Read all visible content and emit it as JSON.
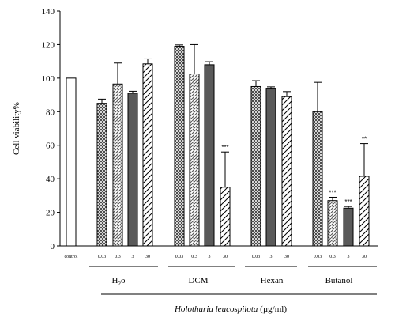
{
  "chart_data": {
    "type": "bar",
    "ylabel": "Cell viability%",
    "xlabel_italic": "Holothuria leucospilota",
    "xlabel_unit": "(µg/ml)",
    "ylim": [
      0,
      140
    ],
    "yticks": [
      0,
      20,
      40,
      60,
      80,
      100,
      120,
      140
    ],
    "grid": false,
    "bars": [
      {
        "label": "control",
        "value": 100,
        "error": 0,
        "pattern": "white",
        "sig": ""
      },
      {
        "label": "0.03",
        "value": 85,
        "error": 2.5,
        "pattern": "crosshatch",
        "sig": ""
      },
      {
        "label": "0.3",
        "value": 96.5,
        "error": 12.5,
        "pattern": "dots",
        "sig": ""
      },
      {
        "label": "3",
        "value": 91,
        "error": 1.2,
        "pattern": "solid",
        "sig": ""
      },
      {
        "label": "30",
        "value": 108.5,
        "error": 3,
        "pattern": "diagonal",
        "sig": ""
      },
      {
        "label": "0.03",
        "value": 119,
        "error": 0.8,
        "pattern": "crosshatch",
        "sig": ""
      },
      {
        "label": "0.3",
        "value": 102.5,
        "error": 17.5,
        "pattern": "dots",
        "sig": ""
      },
      {
        "label": "3",
        "value": 108,
        "error": 1.8,
        "pattern": "solid",
        "sig": ""
      },
      {
        "label": "30",
        "value": 35,
        "error": 21,
        "pattern": "diagonal",
        "sig": "***"
      },
      {
        "label": "0.03",
        "value": 95,
        "error": 3.5,
        "pattern": "crosshatch",
        "sig": ""
      },
      {
        "label": "3",
        "value": 94,
        "error": 0.8,
        "pattern": "solid",
        "sig": ""
      },
      {
        "label": "30",
        "value": 89,
        "error": 3,
        "pattern": "diagonal",
        "sig": ""
      },
      {
        "label": "0.03",
        "value": 80,
        "error": 17.5,
        "pattern": "crosshatch",
        "sig": ""
      },
      {
        "label": "0.3",
        "value": 27,
        "error": 2,
        "pattern": "dots",
        "sig": "***"
      },
      {
        "label": "3",
        "value": 22.5,
        "error": 1,
        "pattern": "solid",
        "sig": "***"
      },
      {
        "label": "30",
        "value": 41.5,
        "error": 19.5,
        "pattern": "diagonal",
        "sig": "**"
      }
    ],
    "groups": [
      {
        "name": "H",
        "subscript": "2",
        "suffix": "o"
      },
      {
        "name": "DCM",
        "subscript": "",
        "suffix": ""
      },
      {
        "name": "Hexan",
        "subscript": "",
        "suffix": ""
      },
      {
        "name": "Butanol",
        "subscript": "",
        "suffix": ""
      }
    ]
  }
}
